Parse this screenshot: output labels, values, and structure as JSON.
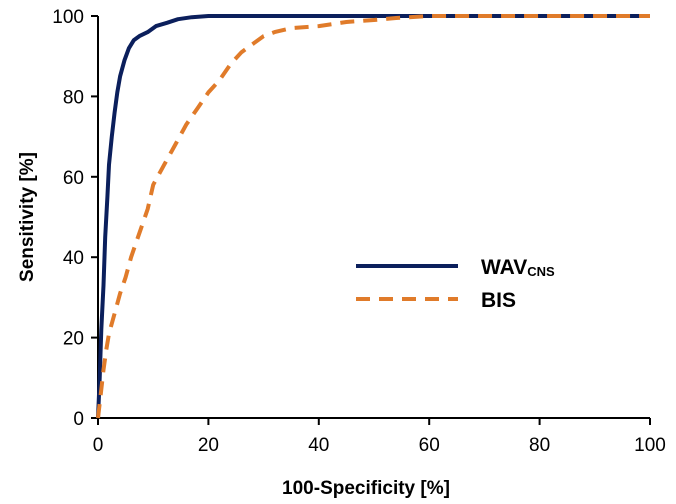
{
  "chart_data": {
    "type": "line",
    "title": "",
    "xlabel": "100-Specificity [%]",
    "ylabel": "Sensitivity [%]",
    "xlim": [
      0,
      100
    ],
    "ylim": [
      0,
      100
    ],
    "x_ticks": [
      0,
      20,
      40,
      60,
      80,
      100
    ],
    "y_ticks": [
      0,
      20,
      40,
      60,
      80,
      100
    ],
    "x_tick_labels": [
      "0",
      "20",
      "40",
      "60",
      "80",
      "100"
    ],
    "y_tick_labels": [
      "0",
      "20",
      "40",
      "60",
      "80",
      "100"
    ],
    "grid": false,
    "legend_placement": "center-right",
    "series": [
      {
        "name": "WAVCNS",
        "name_main": "WAV",
        "name_sub": "CNS",
        "color": "#0b1f5c",
        "style": "solid",
        "points": [
          [
            0,
            0
          ],
          [
            0.3,
            10
          ],
          [
            0.6,
            22
          ],
          [
            1,
            33
          ],
          [
            1.3,
            45
          ],
          [
            1.7,
            55
          ],
          [
            2,
            63
          ],
          [
            2.5,
            70
          ],
          [
            3,
            76
          ],
          [
            3.5,
            81
          ],
          [
            4,
            85
          ],
          [
            4.8,
            89
          ],
          [
            5.6,
            92
          ],
          [
            6.5,
            94
          ],
          [
            7.5,
            95
          ],
          [
            9,
            96
          ],
          [
            10.5,
            97.5
          ],
          [
            12.5,
            98.3
          ],
          [
            14.5,
            99.2
          ],
          [
            17,
            99.7
          ],
          [
            20,
            100
          ],
          [
            40,
            100
          ],
          [
            60,
            100
          ],
          [
            80,
            100
          ],
          [
            100,
            100
          ]
        ]
      },
      {
        "name": "BIS",
        "color": "#e07b2a",
        "style": "dashed",
        "points": [
          [
            0,
            0
          ],
          [
            0.5,
            6
          ],
          [
            1,
            12
          ],
          [
            1.5,
            17
          ],
          [
            2,
            21
          ],
          [
            3,
            26
          ],
          [
            4,
            31
          ],
          [
            5,
            35
          ],
          [
            6,
            40
          ],
          [
            7,
            44
          ],
          [
            8,
            48
          ],
          [
            9,
            52
          ],
          [
            10,
            58
          ],
          [
            12,
            63
          ],
          [
            14,
            68
          ],
          [
            16,
            73
          ],
          [
            18,
            77
          ],
          [
            20,
            81
          ],
          [
            22,
            84
          ],
          [
            24,
            88
          ],
          [
            26,
            91
          ],
          [
            28,
            93
          ],
          [
            30,
            95
          ],
          [
            32,
            96
          ],
          [
            35,
            97
          ],
          [
            40,
            97.5
          ],
          [
            45,
            98.5
          ],
          [
            50,
            99
          ],
          [
            54,
            99.5
          ],
          [
            60,
            100
          ],
          [
            80,
            100
          ],
          [
            100,
            100
          ]
        ]
      }
    ]
  }
}
